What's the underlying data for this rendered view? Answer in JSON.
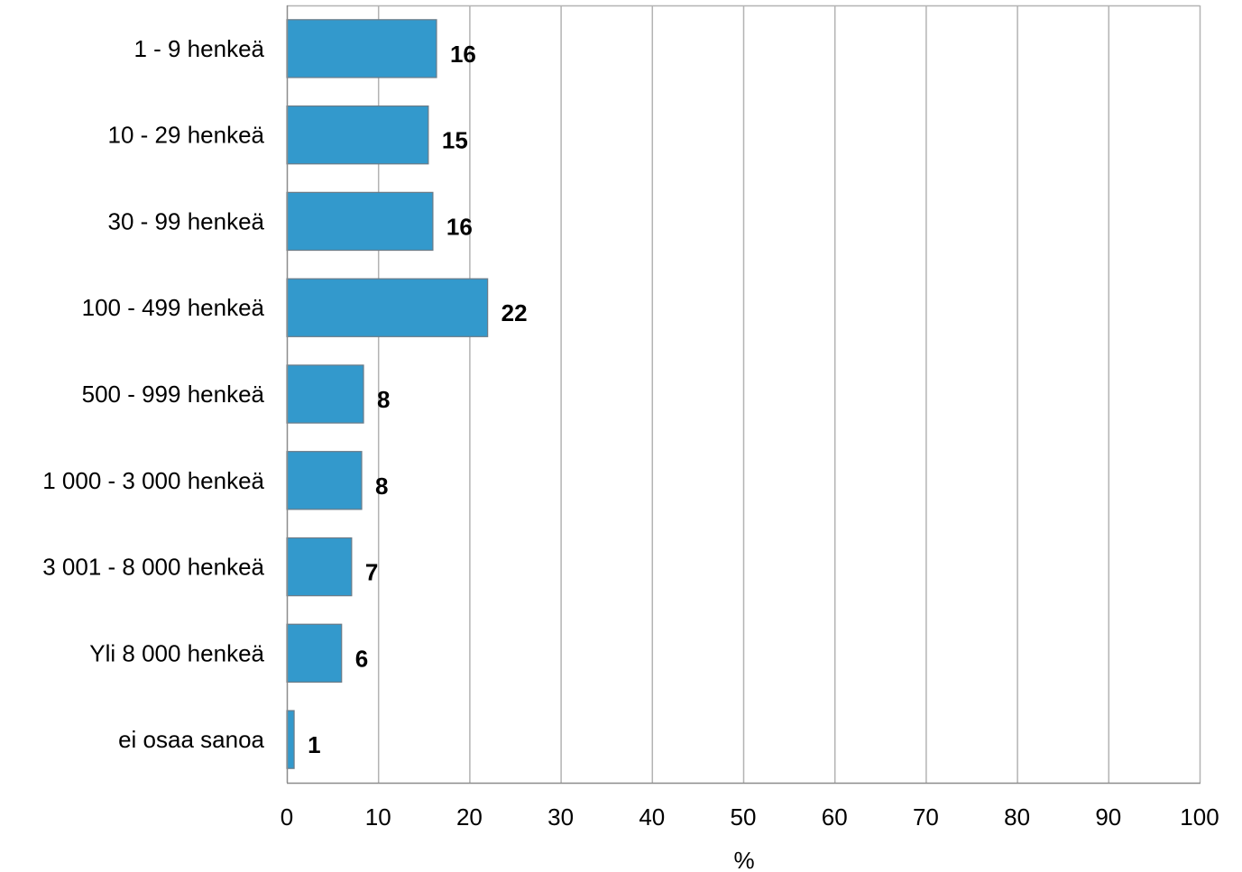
{
  "chart_data": {
    "type": "bar",
    "orientation": "horizontal",
    "categories": [
      "1 - 9 henkeä",
      "10 - 29 henkeä",
      "30 - 99 henkeä",
      "100 - 499 henkeä",
      "500 - 999 henkeä",
      "1 000 - 3 000 henkeä",
      "3 001 - 8 000 henkeä",
      "Yli 8 000 henkeä",
      "ei osaa sanoa"
    ],
    "values": [
      16.4,
      15.5,
      16.0,
      22.0,
      8.4,
      8.2,
      7.1,
      6.0,
      0.8
    ],
    "data_labels": [
      "16",
      "15",
      "16",
      "22",
      "8",
      "8",
      "7",
      "6",
      "1"
    ],
    "xlabel": "%",
    "xlim": [
      0,
      100
    ],
    "xticks": [
      0,
      10,
      20,
      30,
      40,
      50,
      60,
      70,
      80,
      90,
      100
    ],
    "xtick_labels": [
      "0",
      "10",
      "20",
      "30",
      "40",
      "50",
      "60",
      "70",
      "80",
      "90",
      "100"
    ],
    "grid": "vertical",
    "legend": "none",
    "colors": {
      "bar_fill": "#3399cc",
      "bar_stroke": "#6b7b87",
      "grid": "#b3b3b3",
      "axis": "#8c8c8c"
    }
  }
}
